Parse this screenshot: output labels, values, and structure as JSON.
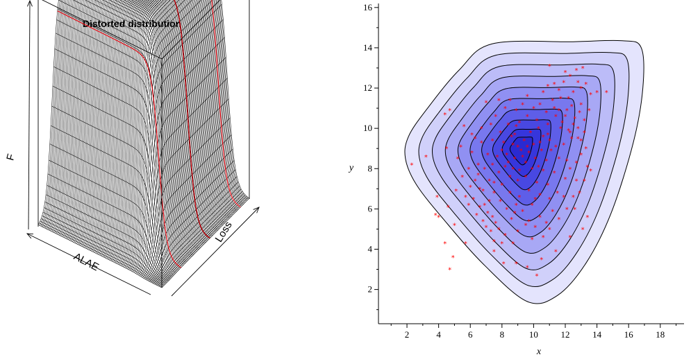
{
  "chart_data": [
    {
      "type": "surface",
      "title": "Distorted distribution",
      "xlabel": "ALAE",
      "ylabel": "Loss",
      "zlabel": "F",
      "grid": false,
      "legend": "none",
      "colors": {
        "mesh": "#000000",
        "highlight": "#e8000b",
        "box": "#000000"
      }
    },
    {
      "type": "scatter",
      "xlabel": "x",
      "ylabel": "y",
      "xlim": [
        0.2,
        19.5
      ],
      "ylim": [
        0.3,
        16.2
      ],
      "xticks": [
        2,
        4,
        6,
        8,
        10,
        12,
        14,
        16,
        18
      ],
      "yticks": [
        2,
        4,
        6,
        8,
        10,
        12,
        14,
        16
      ],
      "grid": false,
      "legend": "none",
      "center": [
        9.2,
        9.0
      ],
      "contour_levels": [
        {
          "r": 0.13,
          "color": "#2a2ad2"
        },
        {
          "r": 0.21,
          "color": "#3636dc"
        },
        {
          "r": 0.3,
          "color": "#4848e2"
        },
        {
          "r": 0.4,
          "color": "#5e5ee8"
        },
        {
          "r": 0.5,
          "color": "#7878ee"
        },
        {
          "r": 0.6,
          "color": "#9090f2"
        },
        {
          "r": 0.7,
          "color": "#a8a8f5"
        },
        {
          "r": 0.8,
          "color": "#bcbcf8"
        },
        {
          "r": 0.9,
          "color": "#d0d0fa"
        },
        {
          "r": 1.0,
          "color": "#e4e4fd"
        }
      ],
      "outer_contour": [
        [
          7.4,
          14.2
        ],
        [
          12.5,
          14.3
        ],
        [
          15.6,
          14.35
        ],
        [
          16.8,
          14.0
        ],
        [
          16.9,
          12.0
        ],
        [
          16.3,
          9.3
        ],
        [
          14.9,
          5.8
        ],
        [
          13.3,
          3.3
        ],
        [
          11.5,
          1.7
        ],
        [
          9.6,
          1.4
        ],
        [
          6.9,
          3.2
        ],
        [
          4.4,
          5.4
        ],
        [
          2.6,
          7.2
        ],
        [
          1.9,
          8.5
        ],
        [
          2.1,
          9.6
        ],
        [
          3.3,
          11.0
        ],
        [
          5.3,
          12.9
        ]
      ],
      "points": [
        [
          11.0,
          13.1
        ],
        [
          13.1,
          13.0
        ],
        [
          12.8,
          12.3
        ],
        [
          12.3,
          12.6
        ],
        [
          11.6,
          11.9
        ],
        [
          14.6,
          11.8
        ],
        [
          13.6,
          11.7
        ],
        [
          10.6,
          11.8
        ],
        [
          9.6,
          11.6
        ],
        [
          7.0,
          11.3
        ],
        [
          4.7,
          10.9
        ],
        [
          4.4,
          10.7
        ],
        [
          5.6,
          10.1
        ],
        [
          6.1,
          9.7
        ],
        [
          4.5,
          9.0
        ],
        [
          3.2,
          8.6
        ],
        [
          2.3,
          8.2
        ],
        [
          5.2,
          8.5
        ],
        [
          5.5,
          7.6
        ],
        [
          5.1,
          6.9
        ],
        [
          3.9,
          6.6
        ],
        [
          4.6,
          6.1
        ],
        [
          3.8,
          5.7
        ],
        [
          4.0,
          5.6
        ],
        [
          5.0,
          5.2
        ],
        [
          5.7,
          4.3
        ],
        [
          4.4,
          4.3
        ],
        [
          4.9,
          3.6
        ],
        [
          4.7,
          3.0
        ],
        [
          7.5,
          3.9
        ],
        [
          8.1,
          3.3
        ],
        [
          8.9,
          3.3
        ],
        [
          9.6,
          3.1
        ],
        [
          10.2,
          2.7
        ],
        [
          10.5,
          3.5
        ],
        [
          11.4,
          3.9
        ],
        [
          12.3,
          4.6
        ],
        [
          13.1,
          5.0
        ],
        [
          13.4,
          5.6
        ],
        [
          13.6,
          7.9
        ],
        [
          13.4,
          8.1
        ],
        [
          12.7,
          7.4
        ],
        [
          12.1,
          8.4
        ],
        [
          13.3,
          9.0
        ],
        [
          13.2,
          9.8
        ],
        [
          12.9,
          10.8
        ],
        [
          12.4,
          11.1
        ],
        [
          12.0,
          10.6
        ],
        [
          11.3,
          11.0
        ],
        [
          10.4,
          11.2
        ],
        [
          8.9,
          10.9
        ],
        [
          8.2,
          11.0
        ],
        [
          7.6,
          10.6
        ],
        [
          6.7,
          10.0
        ],
        [
          6.5,
          8.2
        ],
        [
          6.3,
          7.4
        ],
        [
          6.8,
          6.9
        ],
        [
          6.9,
          6.2
        ],
        [
          7.4,
          5.6
        ],
        [
          7.8,
          5.0
        ],
        [
          8.2,
          4.7
        ],
        [
          9.0,
          4.9
        ],
        [
          9.7,
          5.4
        ],
        [
          10.4,
          5.6
        ],
        [
          11.2,
          5.9
        ],
        [
          11.9,
          6.6
        ],
        [
          12.5,
          6.6
        ],
        [
          12.2,
          9.9
        ],
        [
          11.8,
          10.3
        ],
        [
          10.9,
          10.2
        ],
        [
          13.0,
          12.0
        ],
        [
          12.5,
          11.8
        ],
        [
          11.9,
          12.3
        ],
        [
          10.9,
          12.1
        ],
        [
          12.7,
          12.9
        ],
        [
          13.0,
          11.2
        ],
        [
          13.5,
          10.9
        ],
        [
          12.8,
          9.5
        ],
        [
          12.6,
          10.5
        ],
        [
          12.3,
          9.8
        ],
        [
          11.7,
          11.5
        ],
        [
          11.4,
          10.6
        ],
        [
          10.9,
          9.7
        ],
        [
          10.2,
          10.4
        ],
        [
          9.6,
          10.6
        ],
        [
          9.1,
          10.3
        ],
        [
          8.4,
          10.2
        ],
        [
          7.9,
          9.8
        ],
        [
          7.4,
          9.4
        ],
        [
          7.1,
          8.7
        ],
        [
          6.9,
          8.0
        ],
        [
          7.2,
          7.4
        ],
        [
          7.5,
          6.8
        ],
        [
          7.9,
          6.4
        ],
        [
          8.3,
          6.0
        ],
        [
          8.8,
          5.8
        ],
        [
          9.3,
          5.9
        ],
        [
          9.9,
          6.2
        ],
        [
          10.4,
          6.7
        ],
        [
          10.9,
          7.2
        ],
        [
          11.3,
          7.8
        ],
        [
          11.6,
          8.5
        ],
        [
          11.4,
          9.1
        ],
        [
          11.0,
          9.4
        ],
        [
          10.6,
          9.6
        ],
        [
          9.8,
          9.8
        ],
        [
          8.8,
          9.7
        ],
        [
          8.1,
          9.3
        ],
        [
          7.7,
          8.6
        ],
        [
          7.8,
          7.8
        ],
        [
          8.0,
          7.2
        ],
        [
          8.5,
          6.8
        ],
        [
          9.1,
          6.6
        ],
        [
          9.7,
          6.9
        ],
        [
          10.2,
          7.3
        ],
        [
          10.6,
          7.9
        ],
        [
          10.8,
          8.4
        ],
        [
          10.5,
          8.9
        ],
        [
          10.0,
          9.2
        ],
        [
          9.4,
          9.4
        ],
        [
          8.7,
          9.2
        ],
        [
          8.3,
          8.7
        ],
        [
          8.2,
          8.1
        ],
        [
          8.5,
          7.6
        ],
        [
          9.0,
          7.4
        ],
        [
          9.5,
          7.6
        ],
        [
          9.9,
          8.0
        ],
        [
          10.1,
          8.5
        ],
        [
          9.7,
          8.8
        ],
        [
          9.2,
          8.9
        ],
        [
          8.8,
          8.5
        ],
        [
          8.7,
          8.0
        ],
        [
          9.1,
          7.9
        ],
        [
          9.5,
          8.3
        ],
        [
          9.3,
          8.6
        ],
        [
          9.0,
          9.1
        ],
        [
          8.6,
          9.6
        ],
        [
          9.6,
          9.1
        ],
        [
          10.3,
          8.1
        ],
        [
          8.4,
          8.3
        ],
        [
          6.6,
          7.0
        ],
        [
          6.2,
          6.5
        ],
        [
          6.6,
          6.1
        ],
        [
          7.1,
          5.8
        ],
        [
          7.6,
          5.3
        ],
        [
          7.2,
          6.4
        ],
        [
          6.4,
          5.7
        ],
        [
          6.8,
          5.4
        ],
        [
          7.3,
          4.9
        ],
        [
          7.0,
          5.1
        ],
        [
          8.6,
          5.5
        ],
        [
          9.5,
          5.2
        ],
        [
          10.1,
          5.1
        ],
        [
          10.8,
          5.3
        ],
        [
          11.6,
          5.5
        ],
        [
          12.1,
          6.0
        ],
        [
          11.5,
          6.8
        ],
        [
          12.0,
          7.5
        ],
        [
          12.3,
          8.0
        ],
        [
          11.9,
          9.2
        ],
        [
          12.5,
          10.2
        ],
        [
          12.1,
          10.9
        ],
        [
          11.6,
          10.9
        ],
        [
          13.2,
          10.4
        ],
        [
          12.8,
          10.0
        ],
        [
          13.0,
          9.4
        ],
        [
          12.4,
          9.5
        ],
        [
          11.2,
          11.4
        ],
        [
          10.8,
          10.8
        ],
        [
          8.5,
          11.4
        ],
        [
          9.3,
          11.2
        ],
        [
          7.3,
          10.2
        ],
        [
          6.7,
          9.3
        ],
        [
          6.1,
          8.8
        ],
        [
          5.9,
          8.0
        ],
        [
          6.0,
          7.1
        ],
        [
          5.7,
          6.6
        ],
        [
          5.9,
          6.2
        ],
        [
          8.0,
          4.3
        ],
        [
          8.7,
          4.3
        ],
        [
          7.5,
          4.4
        ],
        [
          9.9,
          4.5
        ],
        [
          10.6,
          4.6
        ],
        [
          11.0,
          5.0
        ],
        [
          12.6,
          6.0
        ],
        [
          12.9,
          6.8
        ],
        [
          13.2,
          7.4
        ],
        [
          12.7,
          8.3
        ],
        [
          13.0,
          8.7
        ],
        [
          11.3,
          12.2
        ],
        [
          10.0,
          11.0
        ],
        [
          7.8,
          11.4
        ],
        [
          6.3,
          9.5
        ],
        [
          5.4,
          9.1
        ],
        [
          12.2,
          11.5
        ],
        [
          11.7,
          10.0
        ],
        [
          10.3,
          10.0
        ],
        [
          8.9,
          10.1
        ],
        [
          7.5,
          7.3
        ],
        [
          8.9,
          6.2
        ],
        [
          10.1,
          6.5
        ],
        [
          11.0,
          6.5
        ],
        [
          11.1,
          8.9
        ],
        [
          10.4,
          9.3
        ],
        [
          8.0,
          8.9
        ],
        [
          7.4,
          8.2
        ],
        [
          6.5,
          7.7
        ],
        [
          12.0,
          12.8
        ],
        [
          14.0,
          11.8
        ],
        [
          13.3,
          12.2
        ]
      ]
    }
  ]
}
